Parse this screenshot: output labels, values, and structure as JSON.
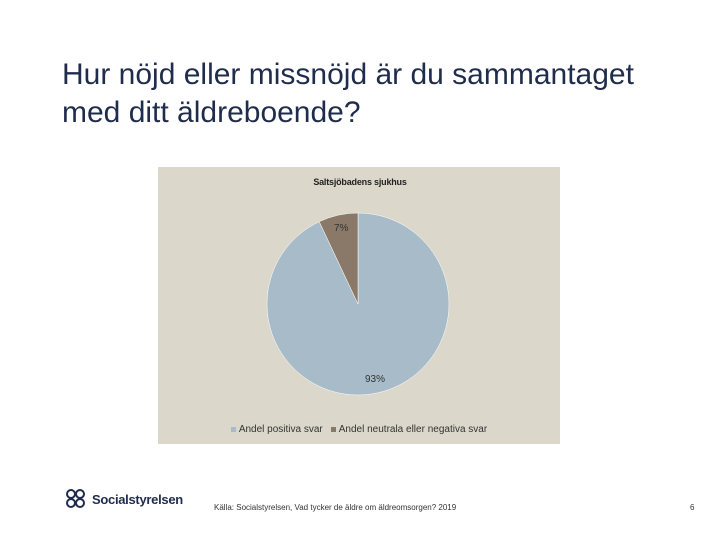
{
  "slide": {
    "title": "Hur nöjd eller missnöjd är du sammantaget med ditt äldreboende?",
    "source": "Källa: Socialstyrelsen, Vad tycker de äldre om äldreomsorgen? 2019",
    "page_number": "6",
    "logo_text": "Socialstyrelsen"
  },
  "chart_data": {
    "type": "pie",
    "title": "Saltsjöbadens sjukhus",
    "categories": [
      "Andel positiva svar",
      "Andel neutrala eller negativa svar"
    ],
    "values": [
      93,
      7
    ],
    "labels": [
      "93%",
      "7%"
    ],
    "colors": [
      "#a7bcc8",
      "#8a7868"
    ],
    "legend_position": "bottom"
  }
}
